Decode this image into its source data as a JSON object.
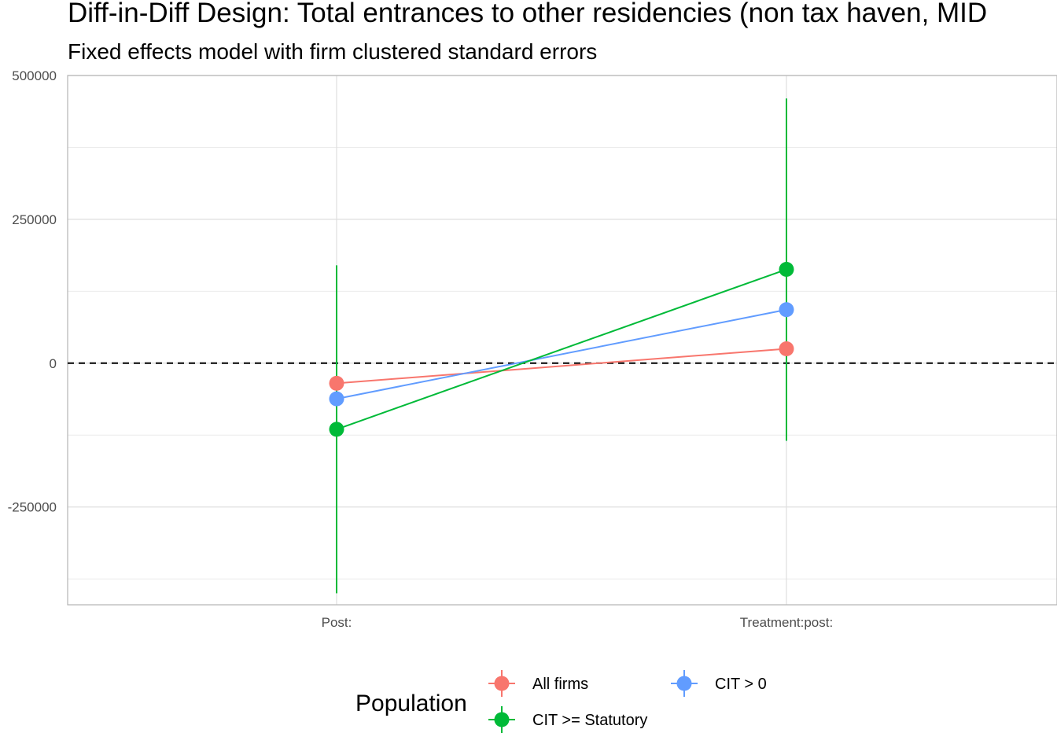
{
  "chart_data": {
    "type": "scatter",
    "title": "Diff-in-Diff Design: Total entrances to other residencies (non tax haven, MID",
    "subtitle": "Fixed effects model with firm clustered standard errors",
    "xlabel": "",
    "ylabel": "",
    "categories": [
      "Post:",
      "Treatment:post:"
    ],
    "ylim": [
      -420000,
      500000
    ],
    "yticks": [
      500000,
      250000,
      0,
      -250000
    ],
    "ytick_labels": [
      "500000",
      "250000",
      "0",
      "-250000"
    ],
    "reference_line": {
      "y": 0,
      "style": "dashed"
    },
    "grid": true,
    "legend": {
      "title": "Population",
      "position": "bottom"
    },
    "series": [
      {
        "name": "All firms",
        "color": "#F8766D",
        "values": [
          -35000,
          25000
        ],
        "ci_low": [
          -110000,
          -20000
        ],
        "ci_high": [
          40000,
          70000
        ]
      },
      {
        "name": "CIT > 0",
        "color": "#619CFF",
        "values": [
          -62000,
          93000
        ],
        "ci_low": [
          -265000,
          -130000
        ],
        "ci_high": [
          140000,
          305000
        ]
      },
      {
        "name": "CIT >= Statutory",
        "color": "#00BA38",
        "values": [
          -115000,
          163000
        ],
        "ci_low": [
          -400000,
          -135000
        ],
        "ci_high": [
          170000,
          460000
        ]
      }
    ]
  }
}
